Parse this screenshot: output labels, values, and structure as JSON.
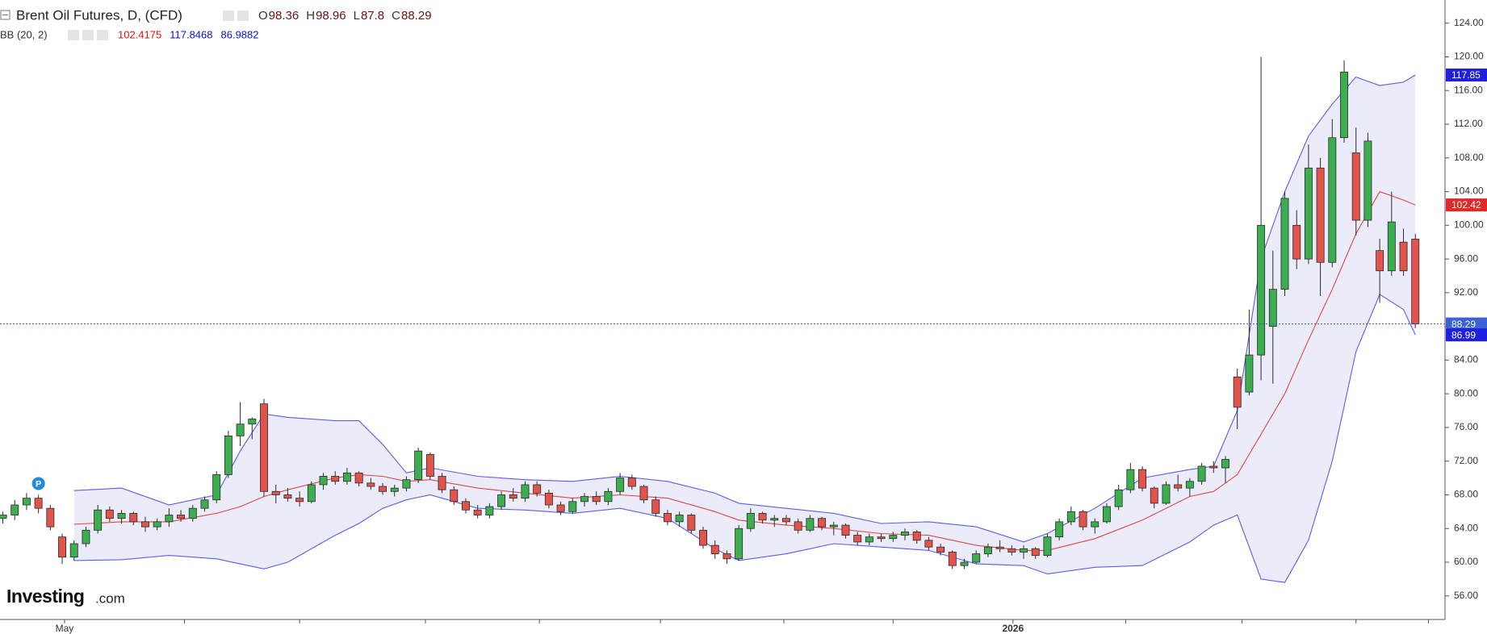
{
  "chart_data": {
    "type": "candlestick",
    "title": "Brent Oil Futures, D, (CFD)",
    "ohlc_labels": [
      "O",
      "H",
      "L",
      "C"
    ],
    "events": [
      {
        "label": "P",
        "index": 3
      }
    ],
    "watermark": {
      "brand": "Investing",
      "suffix": ".com"
    },
    "up_color": "#3dae4f",
    "down_color": "#e2534b",
    "grid": false,
    "xlim": [
      -0.24,
      121.5
    ],
    "xticks": [
      {
        "value": 5.2,
        "label": "May"
      },
      {
        "value": 15.3,
        "label": null
      },
      {
        "value": 25,
        "label": null
      },
      {
        "value": 35.6,
        "label": null
      },
      {
        "value": 45.2,
        "label": null
      },
      {
        "value": 55.4,
        "label": null
      },
      {
        "value": 65.8,
        "label": null
      },
      {
        "value": 75,
        "label": null
      },
      {
        "value": 85.1,
        "label": "2026"
      },
      {
        "value": 94.6,
        "label": null
      },
      {
        "value": 104.4,
        "label": null
      },
      {
        "value": 114,
        "label": null
      },
      {
        "value": 120.1,
        "label": null
      }
    ],
    "ylim": [
      53.2,
      126.75
    ],
    "yticks": [
      {
        "value": 56,
        "label": "56.00"
      },
      {
        "value": 60,
        "label": "60.00"
      },
      {
        "value": 64,
        "label": "64.00"
      },
      {
        "value": 68,
        "label": "68.00"
      },
      {
        "value": 72,
        "label": "72.00"
      },
      {
        "value": 76,
        "label": "76.00"
      },
      {
        "value": 80,
        "label": "80.00"
      },
      {
        "value": 84,
        "label": "84.00"
      },
      {
        "value": 88,
        "label": "88.00"
      },
      {
        "value": 92,
        "label": "92.00"
      },
      {
        "value": 96,
        "label": "96.00"
      },
      {
        "value": 100,
        "label": "100.00"
      },
      {
        "value": 104,
        "label": "104.00"
      },
      {
        "value": 108,
        "label": "108.00"
      },
      {
        "value": 112,
        "label": "112.00"
      },
      {
        "value": 116,
        "label": "116.00"
      },
      {
        "value": 120,
        "label": "120.00"
      },
      {
        "value": 124,
        "label": "124.00"
      }
    ],
    "candles": {
      "open": [
        65.2,
        65.6,
        66.8,
        67.6,
        66.4,
        63.0,
        60.6,
        62.2,
        63.8,
        66.2,
        65.2,
        65.8,
        64.8,
        64.2,
        64.8,
        65.6,
        65.2,
        66.4,
        67.4,
        70.4,
        75.0,
        76.4,
        78.8,
        68.4,
        68.0,
        67.6,
        67.2,
        69.2,
        70.2,
        69.6,
        70.6,
        69.4,
        69.0,
        68.4,
        68.8,
        69.8,
        72.8,
        70.2,
        68.6,
        67.2,
        66.2,
        65.6,
        66.6,
        68.0,
        67.6,
        69.2,
        68.2,
        66.8,
        66.0,
        67.2,
        67.8,
        67.2,
        68.4,
        70.0,
        69.0,
        67.4,
        65.8,
        64.8,
        65.6,
        63.8,
        62.0,
        61.0,
        60.4,
        64.0,
        65.8,
        65.0,
        65.2,
        64.8,
        63.8,
        65.2,
        64.2,
        64.4,
        63.2,
        62.4,
        63.0,
        62.8,
        63.2,
        63.6,
        62.6,
        61.8,
        61.2,
        59.6,
        60.0,
        61.0,
        61.8,
        61.6,
        61.2,
        61.6,
        60.8,
        63.0,
        64.8,
        66.0,
        64.2,
        64.8,
        66.6,
        68.6,
        71.0,
        68.8,
        67.0,
        69.2,
        68.8,
        69.6,
        71.4,
        71.2,
        82.0,
        80.2,
        84.6,
        88.0,
        92.4,
        100.0,
        96.0,
        106.8,
        95.6,
        110.4,
        108.6,
        100.6,
        97.0,
        94.6,
        98.0,
        98.36
      ],
      "high": [
        66.0,
        67.4,
        68.2,
        68.0,
        66.8,
        63.4,
        62.6,
        64.2,
        66.8,
        66.6,
        66.2,
        66.0,
        65.4,
        65.2,
        66.4,
        66.2,
        66.8,
        67.8,
        70.8,
        75.6,
        79.0,
        77.2,
        79.4,
        69.2,
        68.8,
        68.4,
        69.6,
        70.6,
        70.8,
        71.2,
        70.8,
        70.0,
        69.4,
        69.2,
        70.2,
        73.6,
        73.0,
        70.6,
        69.0,
        67.6,
        66.8,
        67.0,
        68.4,
        68.8,
        69.6,
        69.6,
        68.6,
        67.2,
        67.6,
        68.2,
        68.4,
        68.8,
        70.6,
        70.4,
        69.2,
        67.8,
        66.2,
        66.0,
        65.8,
        64.2,
        62.6,
        61.4,
        64.4,
        66.4,
        66.0,
        65.6,
        65.6,
        65.2,
        65.6,
        65.4,
        64.8,
        64.6,
        63.6,
        63.4,
        63.4,
        63.6,
        64.0,
        63.8,
        63.0,
        62.2,
        61.4,
        60.4,
        61.4,
        62.2,
        62.6,
        62.0,
        62.0,
        61.8,
        63.4,
        65.2,
        66.6,
        66.2,
        65.2,
        67.0,
        69.2,
        71.8,
        71.4,
        69.0,
        69.6,
        70.4,
        70.0,
        71.8,
        72.0,
        72.6,
        83.0,
        90.0,
        120.0,
        97.0,
        104.0,
        101.8,
        109.6,
        108.0,
        112.6,
        119.6,
        111.6,
        111.0,
        98.4,
        104.0,
        99.6,
        98.96
      ],
      "low": [
        64.6,
        65.0,
        66.2,
        65.8,
        63.8,
        59.8,
        60.2,
        61.8,
        63.4,
        64.8,
        64.6,
        64.4,
        63.6,
        63.8,
        64.2,
        64.8,
        64.8,
        66.0,
        67.0,
        70.0,
        73.8,
        74.6,
        67.8,
        67.0,
        67.2,
        66.6,
        67.0,
        68.6,
        69.2,
        69.2,
        69.0,
        68.6,
        68.0,
        67.8,
        68.4,
        69.4,
        69.8,
        68.2,
        66.8,
        65.8,
        65.2,
        65.2,
        66.2,
        67.2,
        67.2,
        67.8,
        66.4,
        65.6,
        65.8,
        66.6,
        66.8,
        66.8,
        68.0,
        68.6,
        67.0,
        65.4,
        64.4,
        64.2,
        63.4,
        61.6,
        60.4,
        59.8,
        60.2,
        63.6,
        64.6,
        64.2,
        64.4,
        63.4,
        63.6,
        63.8,
        63.2,
        62.8,
        62.0,
        62.0,
        62.4,
        62.4,
        62.6,
        62.2,
        61.4,
        60.8,
        59.2,
        59.2,
        59.8,
        60.6,
        61.2,
        60.8,
        60.4,
        60.4,
        60.6,
        62.6,
        64.4,
        63.8,
        63.4,
        64.6,
        66.2,
        68.2,
        68.4,
        66.4,
        66.8,
        68.4,
        67.8,
        69.2,
        70.6,
        69.4,
        75.8,
        79.8,
        81.6,
        81.2,
        91.6,
        94.8,
        95.4,
        91.6,
        95.0,
        109.8,
        98.8,
        99.8,
        90.8,
        94.0,
        94.0,
        87.8
      ],
      "close": [
        65.6,
        66.8,
        67.6,
        66.4,
        64.2,
        60.6,
        62.2,
        63.8,
        66.2,
        65.2,
        65.8,
        64.8,
        64.2,
        64.8,
        65.6,
        65.2,
        66.4,
        67.4,
        70.4,
        75.0,
        76.4,
        77.0,
        68.4,
        68.0,
        67.6,
        67.2,
        69.2,
        70.2,
        69.6,
        70.6,
        69.4,
        69.0,
        68.4,
        68.8,
        69.8,
        73.2,
        70.2,
        68.6,
        67.2,
        66.2,
        65.6,
        66.6,
        68.0,
        67.6,
        69.2,
        68.2,
        66.8,
        66.0,
        67.2,
        67.8,
        67.2,
        68.4,
        70.0,
        69.0,
        67.4,
        65.8,
        64.8,
        65.6,
        63.8,
        62.0,
        61.0,
        60.4,
        64.0,
        65.8,
        65.0,
        65.2,
        64.8,
        63.8,
        65.2,
        64.2,
        64.4,
        63.2,
        62.4,
        63.0,
        62.8,
        63.2,
        63.6,
        62.6,
        61.8,
        61.2,
        59.6,
        60.0,
        61.0,
        61.8,
        61.6,
        61.2,
        61.6,
        60.8,
        63.0,
        64.8,
        66.0,
        64.2,
        64.8,
        66.6,
        68.6,
        71.0,
        68.8,
        67.0,
        69.2,
        68.8,
        69.6,
        71.4,
        71.2,
        72.2,
        78.4,
        84.6,
        100.0,
        92.4,
        103.2,
        96.0,
        106.8,
        95.6,
        110.4,
        118.2,
        100.6,
        110.0,
        94.6,
        100.4,
        94.6,
        88.29
      ]
    },
    "bands": {
      "name": "BB (20, 2)",
      "upper_color": "#5c5cf0",
      "middle_color": "#e04848",
      "fill": "rgba(110,110,210,0.14)",
      "x": [
        6,
        10,
        14,
        18,
        20,
        22,
        24,
        28,
        30,
        32,
        34,
        36,
        40,
        44,
        48,
        52,
        56,
        60,
        62,
        66,
        70,
        74,
        78,
        82,
        86,
        88,
        92,
        96,
        100,
        102,
        104,
        106,
        108,
        110,
        112,
        114,
        116,
        118,
        119
      ],
      "upper": [
        68.5,
        68.8,
        66.8,
        68.0,
        73.2,
        77.6,
        77.2,
        76.8,
        76.8,
        74.0,
        70.6,
        71.2,
        70.2,
        69.8,
        69.6,
        70.2,
        69.6,
        68.2,
        67.0,
        66.4,
        65.8,
        64.6,
        64.8,
        64.2,
        62.4,
        63.4,
        66.4,
        70.0,
        71.0,
        71.4,
        78.0,
        96.0,
        104.0,
        110.6,
        114.4,
        117.6,
        116.6,
        117.0,
        117.8468
      ],
      "middle": [
        64.5,
        64.8,
        64.8,
        65.8,
        66.6,
        67.8,
        68.6,
        70.0,
        70.4,
        70.2,
        69.6,
        69.8,
        68.8,
        68.2,
        67.6,
        68.0,
        67.6,
        66.0,
        65.0,
        64.4,
        64.0,
        63.4,
        63.2,
        62.0,
        61.4,
        61.4,
        62.8,
        65.0,
        67.8,
        68.4,
        70.4,
        75.2,
        80.0,
        86.4,
        92.4,
        99.0,
        104.0,
        103.0,
        102.4175
      ],
      "lower": [
        60.2,
        60.3,
        60.8,
        60.4,
        59.8,
        59.2,
        60.0,
        63.2,
        64.6,
        66.4,
        67.4,
        68.0,
        66.4,
        66.2,
        65.8,
        66.4,
        65.2,
        61.6,
        60.2,
        61.0,
        62.2,
        61.8,
        61.4,
        59.8,
        59.6,
        58.6,
        59.4,
        59.6,
        62.4,
        64.4,
        65.6,
        58.0,
        57.6,
        62.6,
        72.0,
        85.0,
        91.8,
        90.0,
        86.9882
      ],
      "tag_labels": {
        "upper": "117.85",
        "middle": "102.42",
        "lower": "86.99"
      }
    }
  }
}
